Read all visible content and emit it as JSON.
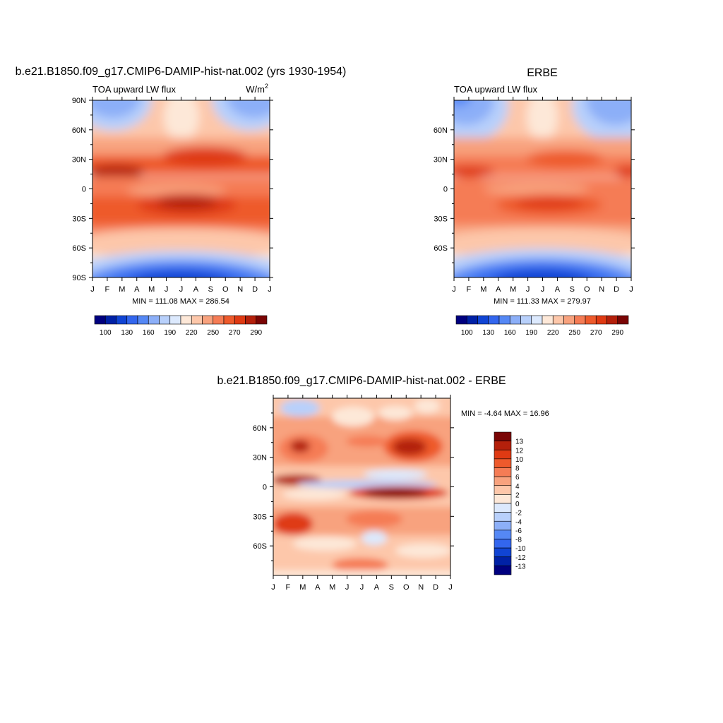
{
  "panels": [
    {
      "title": "b.e21.B1850.f09_g17.CMIP6-DAMIP-hist-nat.002 (yrs 1930-1954)",
      "left_label": "TOA upward LW flux",
      "units_label": "W/m",
      "units_sup": "2",
      "stats": "MIN = 111.08 MAX = 286.54"
    },
    {
      "title": "ERBE",
      "left_label": "TOA upward LW flux",
      "units_label": "",
      "units_sup": "",
      "stats": "MIN = 111.33 MAX = 279.97"
    },
    {
      "title": "b.e21.B1850.f09_g17.CMIP6-DAMIP-hist-nat.002 - ERBE",
      "left_label": "",
      "units_label": "",
      "units_sup": "",
      "stats": "MIN =  -4.64 MAX =  16.96"
    }
  ],
  "chart_data": [
    {
      "type": "heatmap",
      "title": "b.e21.B1850.f09_g17.CMIP6-DAMIP-hist-nat.002 (yrs 1930-1954)",
      "x_ticks": [
        "J",
        "F",
        "M",
        "A",
        "M",
        "J",
        "J",
        "A",
        "S",
        "O",
        "N",
        "D",
        "J"
      ],
      "y_ticks": [
        "90N",
        "60N",
        "30N",
        "0",
        "30S",
        "60S",
        "90S"
      ],
      "y_tick_values": [
        90,
        60,
        30,
        0,
        -30,
        -60,
        -90
      ],
      "ylim": [
        -90,
        90
      ],
      "colorbar": {
        "orientation": "horizontal",
        "labels": [
          "100",
          "130",
          "160",
          "190",
          "220",
          "250",
          "270",
          "290"
        ],
        "colors": [
          "#00007f",
          "#0021a6",
          "#1044d4",
          "#3366ee",
          "#5588f5",
          "#8caff8",
          "#b8d0fb",
          "#dce9fd",
          "#fde8d8",
          "#fdc7aa",
          "#f8a27e",
          "#f57c55",
          "#ee5a2c",
          "#df3a13",
          "#b4200b",
          "#7a0505"
        ]
      },
      "stats": {
        "min": 111.08,
        "max": 286.54
      }
    },
    {
      "type": "heatmap",
      "title": "ERBE",
      "x_ticks": [
        "J",
        "F",
        "M",
        "A",
        "M",
        "J",
        "J",
        "A",
        "S",
        "O",
        "N",
        "D",
        "J"
      ],
      "y_ticks": [
        "60N",
        "30N",
        "0",
        "30S",
        "60S"
      ],
      "y_tick_values": [
        60,
        30,
        0,
        -30,
        -60
      ],
      "ylim": [
        -90,
        90
      ],
      "colorbar": {
        "orientation": "horizontal",
        "labels": [
          "100",
          "130",
          "160",
          "190",
          "220",
          "250",
          "270",
          "290"
        ],
        "colors": [
          "#00007f",
          "#0021a6",
          "#1044d4",
          "#3366ee",
          "#5588f5",
          "#8caff8",
          "#b8d0fb",
          "#dce9fd",
          "#fde8d8",
          "#fdc7aa",
          "#f8a27e",
          "#f57c55",
          "#ee5a2c",
          "#df3a13",
          "#b4200b",
          "#7a0505"
        ]
      },
      "stats": {
        "min": 111.33,
        "max": 279.97
      }
    },
    {
      "type": "heatmap",
      "title": "b.e21.B1850.f09_g17.CMIP6-DAMIP-hist-nat.002 - ERBE",
      "x_ticks": [
        "J",
        "F",
        "M",
        "A",
        "M",
        "J",
        "J",
        "A",
        "S",
        "O",
        "N",
        "D",
        "J"
      ],
      "y_ticks": [
        "60N",
        "30N",
        "0",
        "30S",
        "60S"
      ],
      "y_tick_values": [
        60,
        30,
        0,
        -30,
        -60
      ],
      "ylim": [
        -90,
        90
      ],
      "colorbar": {
        "orientation": "vertical",
        "labels": [
          "13",
          "12",
          "10",
          "8",
          "6",
          "4",
          "2",
          "0",
          "-2",
          "-4",
          "-6",
          "-8",
          "-10",
          "-12",
          "-13"
        ],
        "colors": [
          "#7a0505",
          "#b4200b",
          "#df3a13",
          "#ee5a2c",
          "#f57c55",
          "#f8a27e",
          "#fdc7aa",
          "#fde8d8",
          "#dce9fd",
          "#b8d0fb",
          "#8caff8",
          "#5588f5",
          "#3366ee",
          "#1044d4",
          "#0021a6",
          "#00007f"
        ]
      },
      "stats": {
        "min": -4.64,
        "max": 16.96
      }
    }
  ]
}
